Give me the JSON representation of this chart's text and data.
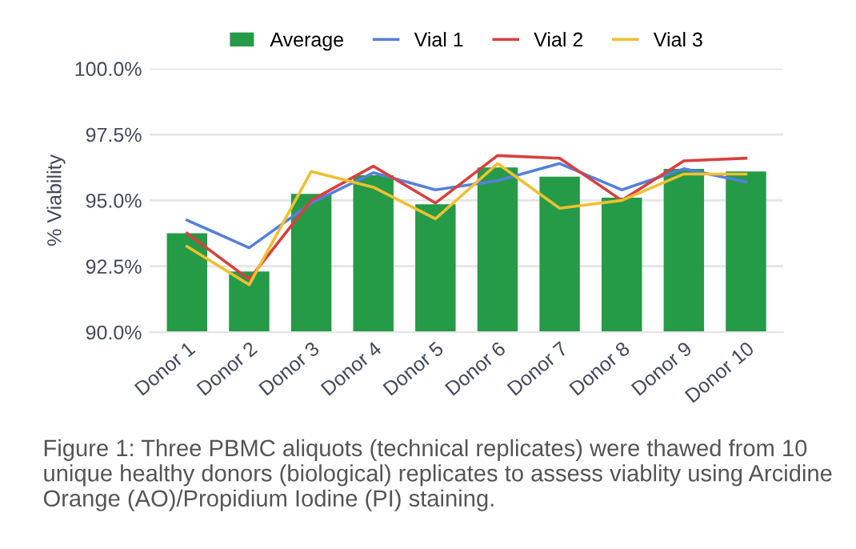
{
  "chart_data": {
    "type": "bar",
    "ylabel": "% Viability",
    "categories": [
      "Donor 1",
      "Donor 2",
      "Donor 3",
      "Donor 4",
      "Donor 5",
      "Donor 6",
      "Donor 7",
      "Donor 8",
      "Donor 9",
      "Donor 10"
    ],
    "series": [
      {
        "name": "Average",
        "color": "#259a47",
        "values": [
          93.75,
          92.3,
          95.25,
          95.95,
          94.85,
          96.25,
          95.9,
          95.1,
          96.2,
          96.1
        ]
      },
      {
        "name": "Vial 1",
        "type": "line",
        "color": "#5580dd",
        "values": [
          94.25,
          93.2,
          94.9,
          96.05,
          95.4,
          95.75,
          96.4,
          95.4,
          96.2,
          95.7
        ]
      },
      {
        "name": "Vial 2",
        "type": "line",
        "color": "#d94040",
        "values": [
          93.75,
          92.0,
          95.0,
          96.3,
          94.9,
          96.7,
          96.6,
          95.0,
          96.5,
          96.6
        ]
      },
      {
        "name": "Vial 3",
        "type": "line",
        "color": "#f0c030",
        "values": [
          93.25,
          91.8,
          96.1,
          95.5,
          94.3,
          96.4,
          94.7,
          95.0,
          96.0,
          96.0
        ]
      }
    ],
    "ylim": [
      90,
      100
    ],
    "yticks": [
      {
        "value": 90,
        "label": "90.0%"
      },
      {
        "value": 92.5,
        "label": "92.5%"
      },
      {
        "value": 95,
        "label": "95.0%"
      },
      {
        "value": 97.5,
        "label": "97.5%"
      },
      {
        "value": 100,
        "label": "100.0%"
      }
    ],
    "grid": "y",
    "legend": "top",
    "annotations": [
      "Figure 1: Three PBMC aliquots (technical replicates) were thawed from 10 unique healthy donors (biological) replicates to assess viablity using Arcidine Orange (AO)/Propidium Iodine (PI) staining."
    ]
  }
}
